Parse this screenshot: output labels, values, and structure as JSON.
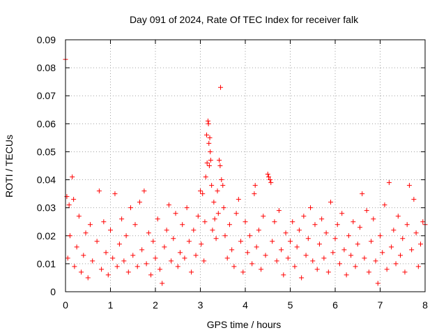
{
  "chart_data": {
    "type": "scatter",
    "title": "Day 091 of 2024, Rate Of TEC Index for receiver falk",
    "xlabel": "GPS time / hours",
    "ylabel": "ROTI / TECUs",
    "xlim": [
      0,
      8
    ],
    "ylim": [
      0,
      0.09
    ],
    "xticks": [
      0,
      1,
      2,
      3,
      4,
      5,
      6,
      7,
      8
    ],
    "yticks": [
      0,
      0.01,
      0.02,
      0.03,
      0.04,
      0.05,
      0.06,
      0.07,
      0.08,
      0.09
    ],
    "xtick_labels": [
      "0",
      "1",
      "2",
      "3",
      "4",
      "5",
      "6",
      "7",
      "8"
    ],
    "ytick_labels": [
      "0",
      "0.01",
      "0.02",
      "0.03",
      "0.04",
      "0.05",
      "0.06",
      "0.07",
      "0.08",
      "0.09"
    ],
    "grid": true,
    "marker": "+",
    "color": "#ff0000",
    "series": [
      {
        "name": "ROTI",
        "points": [
          [
            0.0,
            0.083
          ],
          [
            0.03,
            0.034
          ],
          [
            0.05,
            0.012
          ],
          [
            0.08,
            0.031
          ],
          [
            0.1,
            0.02
          ],
          [
            0.15,
            0.041
          ],
          [
            0.18,
            0.033
          ],
          [
            0.2,
            0.009
          ],
          [
            0.25,
            0.016
          ],
          [
            0.3,
            0.027
          ],
          [
            0.35,
            0.007
          ],
          [
            0.4,
            0.013
          ],
          [
            0.45,
            0.021
          ],
          [
            0.5,
            0.005
          ],
          [
            0.55,
            0.024
          ],
          [
            0.6,
            0.011
          ],
          [
            0.7,
            0.018
          ],
          [
            0.75,
            0.036
          ],
          [
            0.8,
            0.008
          ],
          [
            0.85,
            0.025
          ],
          [
            0.9,
            0.014
          ],
          [
            0.95,
            0.006
          ],
          [
            1.0,
            0.022
          ],
          [
            1.05,
            0.012
          ],
          [
            1.1,
            0.035
          ],
          [
            1.15,
            0.009
          ],
          [
            1.2,
            0.017
          ],
          [
            1.25,
            0.026
          ],
          [
            1.3,
            0.011
          ],
          [
            1.35,
            0.02
          ],
          [
            1.4,
            0.007
          ],
          [
            1.45,
            0.03
          ],
          [
            1.5,
            0.013
          ],
          [
            1.55,
            0.024
          ],
          [
            1.6,
            0.009
          ],
          [
            1.65,
            0.032
          ],
          [
            1.7,
            0.015
          ],
          [
            1.75,
            0.036
          ],
          [
            1.8,
            0.01
          ],
          [
            1.85,
            0.021
          ],
          [
            1.9,
            0.006
          ],
          [
            1.95,
            0.018
          ],
          [
            2.0,
            0.012
          ],
          [
            2.05,
            0.026
          ],
          [
            2.1,
            0.008
          ],
          [
            2.15,
            0.003
          ],
          [
            2.2,
            0.016
          ],
          [
            2.25,
            0.022
          ],
          [
            2.3,
            0.031
          ],
          [
            2.35,
            0.011
          ],
          [
            2.4,
            0.019
          ],
          [
            2.45,
            0.028
          ],
          [
            2.5,
            0.009
          ],
          [
            2.55,
            0.014
          ],
          [
            2.6,
            0.024
          ],
          [
            2.65,
            0.012
          ],
          [
            2.7,
            0.03
          ],
          [
            2.75,
            0.018
          ],
          [
            2.8,
            0.007
          ],
          [
            2.85,
            0.022
          ],
          [
            2.9,
            0.013
          ],
          [
            2.95,
            0.027
          ],
          [
            3.0,
            0.036
          ],
          [
            3.02,
            0.017
          ],
          [
            3.05,
            0.035
          ],
          [
            3.08,
            0.011
          ],
          [
            3.1,
            0.025
          ],
          [
            3.12,
            0.041
          ],
          [
            3.14,
            0.056
          ],
          [
            3.15,
            0.046
          ],
          [
            3.17,
            0.061
          ],
          [
            3.18,
            0.06
          ],
          [
            3.19,
            0.053
          ],
          [
            3.2,
            0.045
          ],
          [
            3.21,
            0.055
          ],
          [
            3.22,
            0.05
          ],
          [
            3.23,
            0.047
          ],
          [
            3.25,
            0.038
          ],
          [
            3.27,
            0.022
          ],
          [
            3.3,
            0.032
          ],
          [
            3.32,
            0.026
          ],
          [
            3.35,
            0.019
          ],
          [
            3.38,
            0.036
          ],
          [
            3.4,
            0.028
          ],
          [
            3.42,
            0.047
          ],
          [
            3.44,
            0.045
          ],
          [
            3.45,
            0.073
          ],
          [
            3.47,
            0.04
          ],
          [
            3.5,
            0.038
          ],
          [
            3.52,
            0.03
          ],
          [
            3.55,
            0.02
          ],
          [
            3.6,
            0.012
          ],
          [
            3.65,
            0.024
          ],
          [
            3.7,
            0.015
          ],
          [
            3.75,
            0.009
          ],
          [
            3.8,
            0.028
          ],
          [
            3.85,
            0.033
          ],
          [
            3.9,
            0.018
          ],
          [
            3.95,
            0.007
          ],
          [
            4.0,
            0.025
          ],
          [
            4.05,
            0.014
          ],
          [
            4.1,
            0.02
          ],
          [
            4.15,
            0.01
          ],
          [
            4.2,
            0.035
          ],
          [
            4.22,
            0.038
          ],
          [
            4.25,
            0.016
          ],
          [
            4.3,
            0.022
          ],
          [
            4.35,
            0.008
          ],
          [
            4.4,
            0.027
          ],
          [
            4.45,
            0.013
          ],
          [
            4.5,
            0.042
          ],
          [
            4.52,
            0.041
          ],
          [
            4.55,
            0.04
          ],
          [
            4.57,
            0.039
          ],
          [
            4.6,
            0.018
          ],
          [
            4.65,
            0.025
          ],
          [
            4.7,
            0.011
          ],
          [
            4.75,
            0.029
          ],
          [
            4.8,
            0.015
          ],
          [
            4.85,
            0.006
          ],
          [
            4.9,
            0.021
          ],
          [
            4.95,
            0.012
          ],
          [
            5.0,
            0.018
          ],
          [
            5.05,
            0.025
          ],
          [
            5.1,
            0.009
          ],
          [
            5.15,
            0.016
          ],
          [
            5.2,
            0.022
          ],
          [
            5.25,
            0.005
          ],
          [
            5.3,
            0.027
          ],
          [
            5.35,
            0.013
          ],
          [
            5.4,
            0.019
          ],
          [
            5.45,
            0.03
          ],
          [
            5.5,
            0.011
          ],
          [
            5.55,
            0.024
          ],
          [
            5.6,
            0.008
          ],
          [
            5.65,
            0.017
          ],
          [
            5.7,
            0.026
          ],
          [
            5.75,
            0.012
          ],
          [
            5.8,
            0.021
          ],
          [
            5.85,
            0.007
          ],
          [
            5.9,
            0.032
          ],
          [
            5.95,
            0.014
          ],
          [
            6.0,
            0.019
          ],
          [
            6.05,
            0.024
          ],
          [
            6.1,
            0.01
          ],
          [
            6.15,
            0.028
          ],
          [
            6.2,
            0.015
          ],
          [
            6.25,
            0.006
          ],
          [
            6.3,
            0.02
          ],
          [
            6.35,
            0.013
          ],
          [
            6.4,
            0.025
          ],
          [
            6.45,
            0.009
          ],
          [
            6.5,
            0.017
          ],
          [
            6.55,
            0.023
          ],
          [
            6.6,
            0.035
          ],
          [
            6.65,
            0.012
          ],
          [
            6.7,
            0.029
          ],
          [
            6.75,
            0.007
          ],
          [
            6.8,
            0.018
          ],
          [
            6.85,
            0.026
          ],
          [
            6.9,
            0.011
          ],
          [
            6.95,
            0.003
          ],
          [
            7.0,
            0.02
          ],
          [
            7.05,
            0.014
          ],
          [
            7.1,
            0.031
          ],
          [
            7.15,
            0.008
          ],
          [
            7.2,
            0.039
          ],
          [
            7.25,
            0.016
          ],
          [
            7.3,
            0.022
          ],
          [
            7.35,
            0.01
          ],
          [
            7.4,
            0.027
          ],
          [
            7.45,
            0.013
          ],
          [
            7.5,
            0.019
          ],
          [
            7.55,
            0.007
          ],
          [
            7.6,
            0.024
          ],
          [
            7.65,
            0.038
          ],
          [
            7.7,
            0.015
          ],
          [
            7.75,
            0.033
          ],
          [
            7.8,
            0.021
          ],
          [
            7.85,
            0.009
          ],
          [
            7.9,
            0.017
          ],
          [
            7.95,
            0.025
          ],
          [
            8.0,
            0.024
          ]
        ]
      }
    ]
  }
}
